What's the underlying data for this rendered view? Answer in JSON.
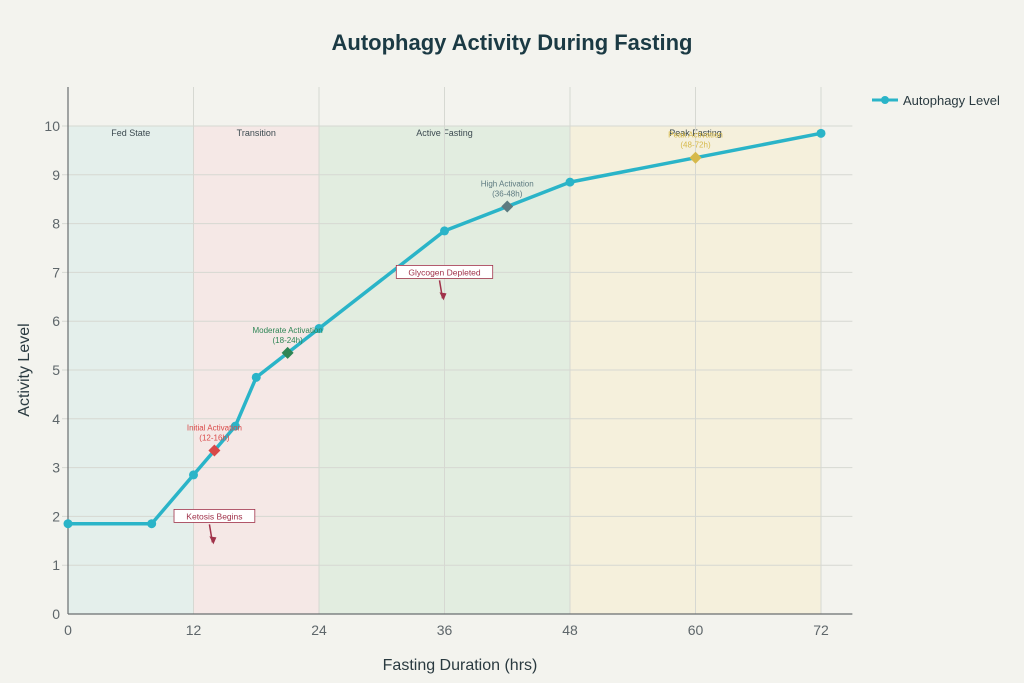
{
  "chart_data": {
    "type": "line",
    "title": "Autophagy Activity During Fasting",
    "xlabel": "Fasting Duration (hrs)",
    "ylabel": "Activity Level",
    "xlim": [
      0,
      75
    ],
    "ylim": [
      0,
      10.8
    ],
    "xticks": [
      0,
      12,
      24,
      36,
      48,
      60,
      72
    ],
    "yticks": [
      0,
      1,
      2,
      3,
      4,
      5,
      6,
      7,
      8,
      9,
      10
    ],
    "grid": true,
    "legend": {
      "position": "top-right",
      "entries": [
        "Autophagy Level"
      ]
    },
    "series": [
      {
        "name": "Autophagy Level",
        "color": "#2ab4c8",
        "x": [
          0,
          8,
          12,
          16,
          18,
          24,
          36,
          48,
          72
        ],
        "y": [
          1.85,
          1.85,
          2.85,
          3.85,
          4.85,
          5.85,
          7.85,
          8.85,
          9.85
        ]
      }
    ],
    "phases": [
      {
        "label": "Fed State",
        "start": 0,
        "end": 12,
        "color": "#e4efeb"
      },
      {
        "label": "Transition",
        "start": 12,
        "end": 24,
        "color": "#f5e8e6"
      },
      {
        "label": "Active Fasting",
        "start": 24,
        "end": 48,
        "color": "#e2ede0"
      },
      {
        "label": "Peak Fasting",
        "start": 48,
        "end": 72,
        "color": "#f5f0dc"
      }
    ],
    "markers": [
      {
        "label": "Initial Activation",
        "range": "(12-16h)",
        "x": 14,
        "y": 3.35,
        "color": "#d94848"
      },
      {
        "label": "Moderate Activation",
        "range": "(18-24h)",
        "x": 21,
        "y": 5.35,
        "color": "#2e8555"
      },
      {
        "label": "High Activation",
        "range": "(36-48h)",
        "x": 42,
        "y": 8.35,
        "color": "#5d7a80"
      },
      {
        "label": "Peak Activation",
        "range": "(48-72h)",
        "x": 60,
        "y": 9.35,
        "color": "#d6b94a"
      }
    ],
    "annotations": [
      {
        "text": "Ketosis Begins",
        "x": 14,
        "y": 1.5,
        "color": "#a0324a"
      },
      {
        "text": "Glycogen Depleted",
        "x": 36,
        "y": 6.5,
        "color": "#a0324a"
      }
    ]
  }
}
